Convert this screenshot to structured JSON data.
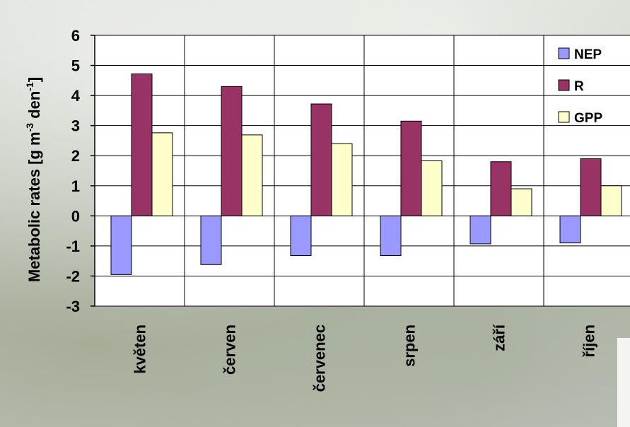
{
  "chart_data": {
    "type": "bar",
    "categories": [
      "květen",
      "červen",
      "červenec",
      "srpen",
      "září",
      "říjen"
    ],
    "series": [
      {
        "name": "NEP",
        "values": [
          -1.95,
          -1.62,
          -1.32,
          -1.32,
          -0.93,
          -0.9
        ],
        "color": "#9999ff"
      },
      {
        "name": "R",
        "values": [
          4.72,
          4.3,
          3.72,
          3.15,
          1.8,
          1.9
        ],
        "color": "#993366"
      },
      {
        "name": "GPP",
        "values": [
          2.76,
          2.69,
          2.4,
          1.83,
          0.9,
          1.0
        ],
        "color": "#ffffcc"
      }
    ],
    "ylim": [
      -3,
      6
    ],
    "yticks": [
      "-3",
      "-2",
      "-1",
      "0",
      "1",
      "2",
      "3",
      "4",
      "5",
      "6"
    ],
    "ylabel": {
      "main": "Metabolic rates [g m",
      "sup1": "-3",
      "mid": " den",
      "sup2": "-1",
      "end": "]"
    },
    "legend": {
      "position": "right"
    },
    "grid": true
  }
}
